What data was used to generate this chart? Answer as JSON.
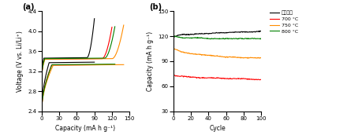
{
  "panel_a_label": "(a)",
  "panel_b_label": "(b)",
  "panel_a_xlabel": "Capacity (mA h g⁻¹)",
  "panel_a_ylabel": "Voltage (V vs. Li/Li⁺)",
  "panel_a_xlim": [
    0,
    150
  ],
  "panel_a_ylim": [
    2.4,
    4.4
  ],
  "panel_a_xticks": [
    0,
    30,
    60,
    90,
    120,
    150
  ],
  "panel_a_yticks": [
    2.4,
    2.8,
    3.2,
    3.6,
    4.0,
    4.4
  ],
  "panel_b_xlabel": "Cycle",
  "panel_b_ylabel": "Capacity (mA h g⁻¹)",
  "panel_b_xlim": [
    0,
    100
  ],
  "panel_b_ylim": [
    30,
    150
  ],
  "panel_b_xticks": [
    0,
    20,
    40,
    60,
    80,
    100
  ],
  "panel_b_yticks": [
    30,
    60,
    90,
    120,
    150
  ],
  "colors": {
    "untreated": "#000000",
    "700C": "#ff0000",
    "750C": "#ff8c00",
    "800C": "#008000"
  },
  "legend_labels": [
    "열처리전",
    "700 °C",
    "750 °C",
    "800 °C"
  ],
  "background": "#ffffff",
  "charge_params": {
    "untreated": {
      "cap_chg": 90,
      "cap_dis": 90,
      "v_flat_c": 3.46,
      "v_flat_d": 3.38,
      "v_max": 4.25,
      "v_min": 2.44
    },
    "700C": {
      "cap_chg": 120,
      "cap_dis": 120,
      "v_flat_c": 3.44,
      "v_flat_d": 3.33,
      "v_max": 4.08,
      "v_min": 2.42
    },
    "750C": {
      "cap_chg": 140,
      "cap_dis": 140,
      "v_flat_c": 3.44,
      "v_flat_d": 3.33,
      "v_max": 4.12,
      "v_min": 2.42
    },
    "800C": {
      "cap_chg": 125,
      "cap_dis": 125,
      "v_flat_c": 3.45,
      "v_flat_d": 3.34,
      "v_max": 4.09,
      "v_min": 2.42
    }
  },
  "cycle_params": {
    "untreated": {
      "x": [
        1,
        5,
        10,
        20,
        30,
        40,
        50,
        60,
        70,
        80,
        90,
        100
      ],
      "y": [
        119,
        121,
        122,
        122,
        123,
        123,
        124,
        124,
        125,
        125,
        125,
        126
      ]
    },
    "700C": {
      "x": [
        1,
        5,
        10,
        20,
        30,
        40,
        50,
        60,
        70,
        80,
        90,
        100
      ],
      "y": [
        73,
        72,
        72,
        71,
        70,
        70,
        70,
        69,
        69,
        69,
        68,
        68
      ]
    },
    "750C": {
      "x": [
        1,
        5,
        10,
        20,
        30,
        40,
        50,
        60,
        70,
        80,
        90,
        100
      ],
      "y": [
        105,
        103,
        101,
        99,
        98,
        97,
        96,
        95,
        95,
        94,
        94,
        94
      ]
    },
    "800C": {
      "x": [
        1,
        5,
        10,
        20,
        30,
        40,
        50,
        60,
        70,
        80,
        90,
        100
      ],
      "y": [
        120,
        119,
        118,
        118,
        118,
        117,
        117,
        117,
        117,
        117,
        117,
        117
      ]
    }
  }
}
